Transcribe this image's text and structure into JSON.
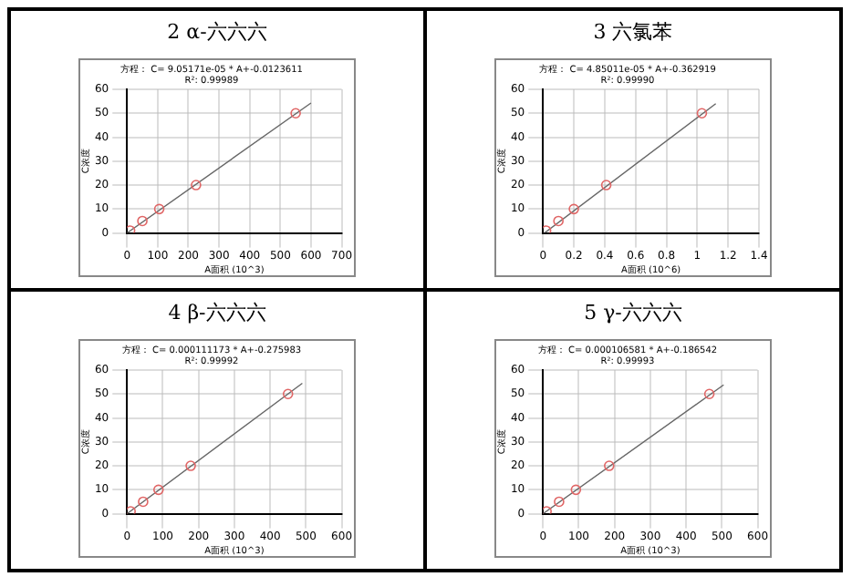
{
  "chart_data": [
    {
      "type": "scatter",
      "title": "2 α-六六六",
      "annotations": [
        "方程： C= 9.05171e-05 * A+-0.0123611",
        "R²: 0.99989"
      ],
      "xlabel": "A面积 (10^3)",
      "ylabel": "C浓度",
      "xlim": [
        0,
        700
      ],
      "xticks": [
        0,
        100,
        200,
        300,
        400,
        500,
        600,
        700
      ],
      "ylim": [
        0,
        60
      ],
      "yticks": [
        0,
        10,
        20,
        30,
        40,
        50,
        60
      ],
      "grid": true,
      "series": [
        {
          "type": "scatter",
          "marker": "circle",
          "color": "#e06666",
          "x": [
            10,
            50,
            105,
            225,
            550
          ],
          "values": [
            1,
            5,
            10,
            20,
            50
          ]
        },
        {
          "type": "line",
          "marker": "none",
          "color": "#666666",
          "x": [
            0,
            600
          ],
          "values": [
            0,
            54.3
          ]
        }
      ]
    },
    {
      "type": "scatter",
      "title": "3 六氯苯",
      "annotations": [
        "方程： C= 4.85011e-05 * A+-0.362919",
        "R²: 0.99990"
      ],
      "xlabel": "A面积 (10^6)",
      "ylabel": "C浓度",
      "xlim": [
        0,
        1.4
      ],
      "xticks": [
        0,
        0.2,
        0.4,
        0.6,
        0.8,
        1,
        1.2,
        1.4
      ],
      "ylim": [
        0,
        60
      ],
      "yticks": [
        0,
        10,
        20,
        30,
        40,
        50,
        60
      ],
      "grid": true,
      "series": [
        {
          "type": "scatter",
          "marker": "circle",
          "color": "#e06666",
          "x": [
            0.02,
            0.1,
            0.2,
            0.41,
            1.03
          ],
          "values": [
            1,
            5,
            10,
            20,
            50
          ]
        },
        {
          "type": "line",
          "marker": "none",
          "color": "#666666",
          "x": [
            0.01,
            1.12
          ],
          "values": [
            0,
            54
          ]
        }
      ]
    },
    {
      "type": "scatter",
      "title": "4 β-六六六",
      "annotations": [
        "方程： C= 0.000111173 * A+-0.275983",
        "R²: 0.99992"
      ],
      "xlabel": "A面积 (10^3)",
      "ylabel": "C浓度",
      "xlim": [
        0,
        600
      ],
      "xticks": [
        0,
        100,
        200,
        300,
        400,
        500,
        600
      ],
      "ylim": [
        0,
        60
      ],
      "yticks": [
        0,
        10,
        20,
        30,
        40,
        50,
        60
      ],
      "grid": true,
      "series": [
        {
          "type": "scatter",
          "marker": "circle",
          "color": "#e06666",
          "x": [
            10,
            45,
            88,
            178,
            450
          ],
          "values": [
            1,
            5,
            10,
            20,
            50
          ]
        },
        {
          "type": "line",
          "marker": "none",
          "color": "#666666",
          "x": [
            0,
            490
          ],
          "values": [
            0,
            54.5
          ]
        }
      ]
    },
    {
      "type": "scatter",
      "title": "5 γ-六六六",
      "annotations": [
        "方程： C= 0.000106581 * A+-0.186542",
        "R²: 0.99993"
      ],
      "xlabel": "A面积 (10^3)",
      "ylabel": "C浓度",
      "xlim": [
        0,
        600
      ],
      "xticks": [
        0,
        100,
        200,
        300,
        400,
        500,
        600
      ],
      "ylim": [
        0,
        60
      ],
      "yticks": [
        0,
        10,
        20,
        30,
        40,
        50,
        60
      ],
      "grid": true,
      "series": [
        {
          "type": "scatter",
          "marker": "circle",
          "color": "#e06666",
          "x": [
            10,
            45,
            92,
            185,
            465
          ],
          "values": [
            1,
            5,
            10,
            20,
            50
          ]
        },
        {
          "type": "line",
          "marker": "none",
          "color": "#666666",
          "x": [
            0,
            505
          ],
          "values": [
            0,
            53.8
          ]
        }
      ]
    }
  ]
}
